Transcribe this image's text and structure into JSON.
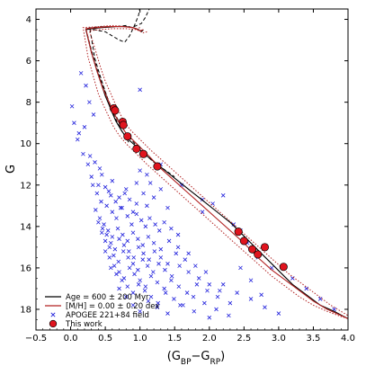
{
  "chart_data": {
    "type": "scatter",
    "xlabel": "(G_BP−G_RP)",
    "xlabel_main": "(G",
    "xlabel_sub1": "BP",
    "xlabel_mid": "−G",
    "xlabel_sub2": "RP",
    "xlabel_close": ")",
    "ylabel": "G",
    "xlim": [
      -0.5,
      4.0
    ],
    "ylim": [
      19.0,
      3.5
    ],
    "y_inverted": true,
    "grid": false,
    "legend_position": "bottom-left",
    "x_ticks": [
      "−0.5",
      "0.0",
      "0.5",
      "1.0",
      "1.5",
      "2.0",
      "2.5",
      "3.0",
      "3.5",
      "4.0"
    ],
    "x_tick_values": [
      -0.5,
      0.0,
      0.5,
      1.0,
      1.5,
      2.0,
      2.5,
      3.0,
      3.5,
      4.0
    ],
    "y_ticks": [
      "4",
      "6",
      "8",
      "10",
      "12",
      "14",
      "16",
      "18"
    ],
    "y_tick_values": [
      4,
      6,
      8,
      10,
      12,
      14,
      16,
      18
    ],
    "series": [
      {
        "name": "Age = 600 ± 200 Myr",
        "kind": "line",
        "style": "solid",
        "color": "#000000",
        "x": [
          1.05,
          1.02,
          0.98,
          0.9,
          0.8,
          0.65,
          0.45,
          0.3,
          0.22,
          0.3,
          0.38,
          0.45,
          0.5,
          0.55,
          0.6,
          0.65,
          0.72,
          0.8,
          0.9,
          1.0,
          1.1,
          1.25,
          1.4,
          1.55,
          1.7,
          1.85,
          2.0,
          2.15,
          2.3,
          2.45,
          2.6,
          2.75,
          2.9,
          3.05,
          3.2,
          3.4,
          3.6,
          3.8,
          4.0
        ],
        "y": [
          4.5,
          4.6,
          4.5,
          4.4,
          4.35,
          4.35,
          4.4,
          4.45,
          4.5,
          5.6,
          6.5,
          7.2,
          7.7,
          8.1,
          8.5,
          8.9,
          9.3,
          9.7,
          10.0,
          10.3,
          10.6,
          11.0,
          11.4,
          11.8,
          12.2,
          12.6,
          13.0,
          13.4,
          13.8,
          14.3,
          14.8,
          15.3,
          15.8,
          16.3,
          16.8,
          17.3,
          17.8,
          18.1,
          18.45
        ]
      },
      {
        "name": "Age envelope (younger)",
        "kind": "line",
        "style": "dashed",
        "color": "#000000",
        "x": [
          1.15,
          1.12,
          1.08,
          1.02,
          0.95,
          0.88,
          0.8,
          0.65,
          0.45,
          0.3,
          0.22,
          0.3,
          0.38,
          0.45,
          0.52,
          0.58,
          0.66,
          0.74,
          0.82,
          0.9,
          1.0,
          1.2,
          1.5
        ],
        "y": [
          3.4,
          3.6,
          3.9,
          4.2,
          4.3,
          4.4,
          4.3,
          4.35,
          4.35,
          4.4,
          4.45,
          5.5,
          6.4,
          7.1,
          7.7,
          8.2,
          8.7,
          9.2,
          9.6,
          9.9,
          10.3,
          10.9,
          11.6
        ]
      },
      {
        "name": "Age envelope (older)",
        "kind": "line",
        "style": "dashed",
        "color": "#000000",
        "x": [
          1.0,
          0.98,
          0.92,
          0.85,
          0.78,
          0.7,
          0.6,
          0.5,
          0.42,
          0.35,
          0.28,
          0.35,
          0.45,
          0.55,
          0.62,
          0.72,
          0.85
        ],
        "y": [
          3.4,
          3.8,
          4.3,
          4.8,
          5.1,
          5.0,
          4.8,
          4.6,
          4.55,
          4.5,
          4.5,
          5.9,
          7.0,
          8.0,
          8.6,
          9.3,
          10.0
        ]
      },
      {
        "name": "[M/H] = 0.00 ± 0.20 dex",
        "kind": "line",
        "style": "solid",
        "color": "#b22222",
        "x": [
          1.05,
          1.0,
          0.9,
          0.75,
          0.55,
          0.38,
          0.22,
          0.3,
          0.38,
          0.46,
          0.54,
          0.62,
          0.7,
          0.8,
          0.95,
          1.1,
          1.3,
          1.5,
          1.7,
          1.9,
          2.1,
          2.3,
          2.5,
          2.7,
          2.9,
          3.1,
          3.3,
          3.5,
          3.7,
          3.9,
          4.0
        ],
        "y": [
          4.5,
          4.55,
          4.4,
          4.35,
          4.35,
          4.4,
          4.45,
          5.6,
          6.5,
          7.3,
          7.9,
          8.5,
          9.0,
          9.5,
          10.0,
          10.5,
          11.2,
          11.8,
          12.4,
          13.0,
          13.6,
          14.2,
          14.8,
          15.5,
          16.1,
          16.6,
          17.1,
          17.6,
          18.0,
          18.3,
          18.45
        ]
      },
      {
        "name": "[M/H] envelope (metal-poor)",
        "kind": "line",
        "style": "dotted",
        "color": "#b22222",
        "x": [
          1.0,
          0.95,
          0.8,
          0.6,
          0.4,
          0.18,
          0.25,
          0.33,
          0.4,
          0.48,
          0.55,
          0.62,
          0.7,
          0.8,
          0.95,
          1.1,
          1.3,
          1.5,
          1.7,
          1.9,
          2.1,
          2.3,
          2.5,
          2.7,
          2.9,
          3.1,
          3.3,
          3.5,
          3.7,
          3.9,
          4.0
        ],
        "y": [
          4.4,
          4.45,
          4.35,
          4.3,
          4.35,
          4.4,
          5.8,
          6.8,
          7.6,
          8.2,
          8.7,
          9.2,
          9.6,
          10.0,
          10.5,
          11.0,
          11.6,
          12.2,
          12.8,
          13.4,
          14.0,
          14.6,
          15.2,
          15.8,
          16.4,
          16.9,
          17.4,
          17.8,
          18.1,
          18.35,
          18.45
        ]
      },
      {
        "name": "[M/H] envelope (metal-rich)",
        "kind": "line",
        "style": "dotted",
        "color": "#b22222",
        "x": [
          1.1,
          1.05,
          0.95,
          0.8,
          0.6,
          0.42,
          0.27,
          0.35,
          0.43,
          0.5,
          0.58,
          0.66,
          0.75,
          0.85,
          1.0,
          1.15,
          1.35,
          1.55,
          1.75,
          1.95,
          2.15,
          2.35,
          2.55,
          2.75,
          2.95,
          3.15,
          3.35,
          3.55,
          3.75,
          3.95,
          4.0
        ],
        "y": [
          4.6,
          4.65,
          4.5,
          4.45,
          4.45,
          4.5,
          4.55,
          5.4,
          6.3,
          7.0,
          7.6,
          8.2,
          8.8,
          9.3,
          9.8,
          10.3,
          10.9,
          11.5,
          12.1,
          12.7,
          13.3,
          13.9,
          14.5,
          15.1,
          15.7,
          16.3,
          16.8,
          17.3,
          17.8,
          18.2,
          18.3
        ]
      },
      {
        "name": "APOGEE 221+84 field",
        "kind": "scatter",
        "marker": "x",
        "color": "#1f1fdc",
        "x": [
          0.02,
          0.05,
          0.1,
          0.18,
          0.25,
          0.3,
          0.4,
          0.45,
          0.55,
          0.6,
          0.7,
          0.8,
          0.95,
          1.0,
          0.35,
          0.42,
          0.28,
          0.5,
          0.58,
          0.65,
          0.72,
          0.78,
          0.85,
          0.9,
          1.05,
          1.1,
          1.15,
          1.2,
          1.3,
          1.4,
          0.32,
          0.38,
          0.44,
          0.52,
          0.6,
          0.66,
          0.74,
          0.82,
          0.88,
          0.95,
          1.02,
          1.08,
          1.14,
          1.22,
          1.28,
          1.35,
          1.45,
          1.55,
          0.36,
          0.42,
          0.48,
          0.54,
          0.6,
          0.68,
          0.75,
          0.82,
          0.9,
          0.97,
          1.04,
          1.12,
          1.2,
          1.3,
          1.42,
          1.55,
          1.7,
          0.4,
          0.46,
          0.52,
          0.58,
          0.64,
          0.7,
          0.77,
          0.84,
          0.91,
          0.98,
          1.05,
          1.13,
          1.21,
          1.3,
          1.4,
          1.52,
          1.65,
          1.8,
          1.95,
          0.45,
          0.5,
          0.56,
          0.62,
          0.69,
          0.76,
          0.83,
          0.9,
          0.97,
          1.04,
          1.11,
          1.19,
          1.27,
          1.36,
          1.46,
          1.57,
          1.7,
          1.85,
          2.0,
          2.15,
          0.5,
          0.56,
          0.63,
          0.7,
          0.77,
          0.85,
          0.92,
          1.0,
          1.08,
          1.16,
          1.25,
          1.35,
          1.45,
          1.56,
          1.68,
          1.82,
          1.97,
          2.12,
          2.3,
          0.58,
          0.66,
          0.74,
          0.82,
          0.9,
          0.98,
          1.07,
          1.16,
          1.26,
          1.37,
          1.49,
          1.62,
          1.77,
          1.93,
          2.1,
          2.28,
          0.7,
          0.8,
          0.9,
          1.0,
          1.12,
          1.25,
          1.4,
          1.58,
          1.78,
          2.0,
          2.2,
          2.4,
          2.6,
          2.8,
          3.0,
          2.55,
          2.45,
          2.35,
          2.7,
          2.9,
          3.2,
          3.4,
          3.6,
          3.8,
          2.2,
          2.05,
          1.9,
          0.15,
          0.22,
          0.27,
          0.33,
          0.12,
          0.2,
          0.95,
          1.1,
          1.3,
          1.6,
          1.9,
          2.45,
          2.6,
          2.75,
          1.0
        ],
        "y": [
          8.2,
          9.0,
          9.8,
          10.5,
          11.0,
          11.6,
          12.0,
          11.5,
          12.3,
          11.8,
          12.6,
          12.2,
          12.9,
          11.3,
          10.9,
          11.2,
          10.6,
          12.1,
          12.5,
          12.8,
          13.1,
          12.4,
          12.7,
          13.3,
          12.4,
          13.0,
          11.9,
          12.6,
          12.2,
          13.1,
          12.0,
          12.4,
          12.8,
          13.0,
          13.3,
          13.6,
          13.1,
          13.5,
          13.9,
          13.4,
          13.7,
          14.0,
          13.6,
          13.9,
          14.2,
          13.8,
          14.1,
          14.4,
          13.2,
          13.6,
          13.9,
          14.2,
          14.5,
          14.1,
          14.4,
          14.7,
          14.3,
          14.6,
          14.9,
          14.5,
          14.8,
          15.1,
          14.7,
          15.0,
          15.3,
          13.8,
          14.1,
          14.4,
          14.8,
          15.1,
          14.6,
          14.9,
          15.2,
          15.5,
          15.0,
          15.3,
          15.6,
          15.2,
          15.5,
          15.8,
          15.3,
          15.6,
          15.9,
          16.2,
          14.3,
          14.7,
          15.0,
          15.4,
          15.7,
          15.2,
          15.5,
          15.8,
          16.1,
          15.6,
          15.9,
          16.2,
          15.8,
          16.1,
          16.4,
          15.9,
          16.2,
          16.5,
          16.8,
          17.1,
          15.2,
          15.5,
          15.9,
          16.2,
          16.5,
          16.0,
          16.3,
          16.6,
          16.9,
          16.4,
          16.7,
          17.0,
          16.6,
          16.9,
          17.2,
          16.8,
          17.1,
          17.4,
          17.7,
          16.0,
          16.3,
          16.6,
          16.9,
          17.2,
          16.8,
          17.1,
          17.4,
          17.7,
          17.2,
          17.5,
          17.8,
          17.4,
          17.7,
          18.0,
          18.3,
          17.0,
          17.4,
          17.8,
          18.1,
          17.6,
          17.9,
          18.2,
          17.8,
          18.1,
          18.4,
          16.8,
          17.2,
          17.5,
          17.9,
          18.2,
          14.8,
          14.2,
          13.9,
          15.5,
          16.0,
          16.5,
          17.0,
          17.5,
          18.0,
          12.5,
          12.9,
          13.3,
          6.6,
          7.2,
          8.0,
          8.6,
          9.5,
          9.2,
          11.9,
          11.5,
          11.0,
          12.0,
          12.7,
          16.0,
          16.6,
          17.3,
          7.4
        ]
      },
      {
        "name": "This work",
        "kind": "scatter",
        "marker": "circle",
        "color": "#e0141e",
        "x": [
          0.62,
          0.64,
          0.75,
          0.76,
          0.82,
          0.95,
          1.05,
          1.25,
          2.42,
          2.5,
          2.62,
          2.7,
          2.8,
          3.07
        ],
        "y": [
          8.3,
          8.4,
          8.95,
          9.1,
          9.65,
          10.25,
          10.5,
          11.1,
          14.25,
          14.7,
          15.1,
          15.35,
          15.0,
          15.95
        ]
      }
    ],
    "legend": [
      {
        "label": "Age = 600 ± 200 Myr",
        "symbol": "line",
        "color": "#000000"
      },
      {
        "label": "[M/H] = 0.00 ± 0.20 dex",
        "symbol": "line",
        "color": "#b22222"
      },
      {
        "label": "APOGEE 221+84 field",
        "symbol": "x",
        "color": "#1f1fdc"
      },
      {
        "label": "This work",
        "symbol": "circle",
        "color": "#e0141e"
      }
    ]
  }
}
